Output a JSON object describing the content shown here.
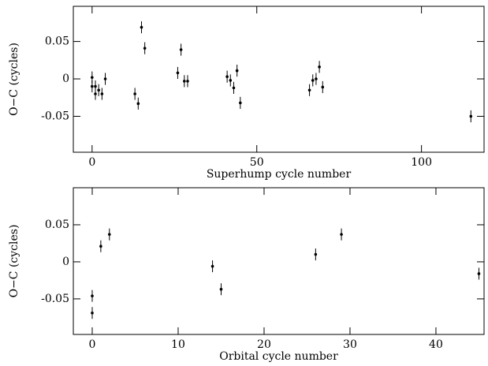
{
  "chart_data": [
    {
      "type": "scatter",
      "x_label": "Superhump cycle number",
      "y_label": "O−C (cycles)",
      "xlim": [
        -5.7,
        119
      ],
      "ylim": [
        -0.098,
        0.097
      ],
      "xticks": [
        0,
        50,
        100
      ],
      "yticks": [
        -0.05,
        0,
        0.05
      ],
      "color": "#000000",
      "x": [
        0,
        0,
        1,
        1,
        2,
        3,
        4,
        13,
        14,
        15,
        16,
        26,
        27,
        28,
        29,
        41,
        42,
        43,
        44,
        45,
        66,
        67,
        68,
        69,
        70,
        115
      ],
      "values": [
        0.002,
        -0.01,
        -0.02,
        -0.01,
        -0.015,
        -0.02,
        0.0,
        -0.02,
        -0.033,
        0.069,
        0.041,
        0.008,
        0.039,
        -0.003,
        -0.003,
        0.003,
        -0.002,
        -0.012,
        0.011,
        -0.032,
        -0.015,
        -0.002,
        0.0,
        0.016,
        -0.011,
        -0.05
      ],
      "errors": [
        0.008,
        0.008,
        0.008,
        0.008,
        0.008,
        0.008,
        0.008,
        0.008,
        0.008,
        0.008,
        0.008,
        0.008,
        0.008,
        0.008,
        0.008,
        0.008,
        0.008,
        0.008,
        0.008,
        0.008,
        0.008,
        0.008,
        0.008,
        0.008,
        0.008,
        0.008
      ]
    },
    {
      "type": "scatter",
      "x_label": "Orbital cycle number",
      "y_label": "O−C (cycles)",
      "xlim": [
        -2.2,
        45.6
      ],
      "ylim": [
        -0.098,
        0.1
      ],
      "xticks": [
        0,
        10,
        20,
        30,
        40
      ],
      "yticks": [
        -0.05,
        0,
        0.05
      ],
      "color": "#000000",
      "x": [
        0,
        0,
        1,
        2,
        14,
        15,
        26,
        29,
        45
      ],
      "values": [
        -0.046,
        -0.069,
        0.021,
        0.037,
        -0.006,
        -0.037,
        0.01,
        0.037,
        -0.016
      ],
      "errors": [
        0.008,
        0.008,
        0.008,
        0.008,
        0.008,
        0.008,
        0.008,
        0.008,
        0.008
      ]
    }
  ]
}
